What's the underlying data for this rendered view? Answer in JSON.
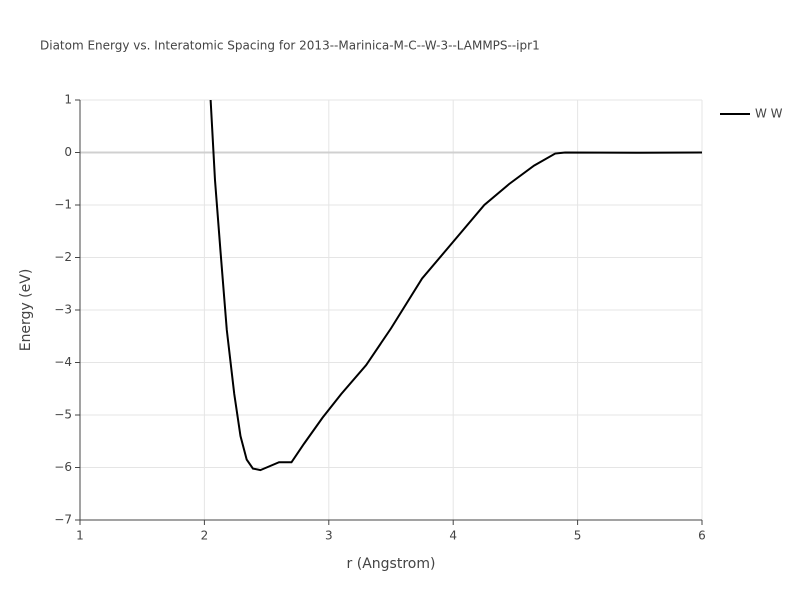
{
  "chart_data": {
    "type": "line",
    "title": "Diatom Energy vs. Interatomic Spacing for 2013--Marinica-M-C--W-3--LAMMPS--ipr1",
    "x_label": "r (Angstrom)",
    "y_label": "Energy (eV)",
    "x": [
      2.05,
      2.085,
      2.13,
      2.18,
      2.24,
      2.29,
      2.34,
      2.39,
      2.45,
      2.5,
      2.6,
      2.7,
      2.8,
      2.95,
      3.1,
      3.3,
      3.5,
      3.75,
      4.0,
      4.25,
      4.45,
      4.65,
      4.82,
      4.9,
      5.5,
      6.0
    ],
    "series": [
      {
        "name": "W W",
        "color": "#000000",
        "values": [
          1.0,
          -0.52,
          -1.9,
          -3.38,
          -4.6,
          -5.4,
          -5.85,
          -6.02,
          -6.05,
          -6.0,
          -5.9,
          -5.9,
          -5.55,
          -5.05,
          -4.6,
          -4.05,
          -3.35,
          -2.4,
          -1.7,
          -1.0,
          -0.6,
          -0.25,
          -0.02,
          0,
          -0.005,
          0
        ]
      }
    ],
    "xlim": [
      1,
      6
    ],
    "ylim": [
      -7,
      1
    ],
    "xticks": [
      1,
      2,
      3,
      4,
      5,
      6
    ],
    "yticks": [
      1,
      0,
      {
        "value": -1,
        "label": "−1"
      },
      {
        "value": -2,
        "label": "−2"
      },
      {
        "value": -3,
        "label": "−3"
      },
      {
        "value": -4,
        "label": "−4"
      },
      {
        "value": -5,
        "label": "−5"
      },
      {
        "value": -6,
        "label": "−6"
      },
      {
        "value": -7,
        "label": "−7"
      }
    ],
    "grid": true,
    "legend": "top-right"
  }
}
